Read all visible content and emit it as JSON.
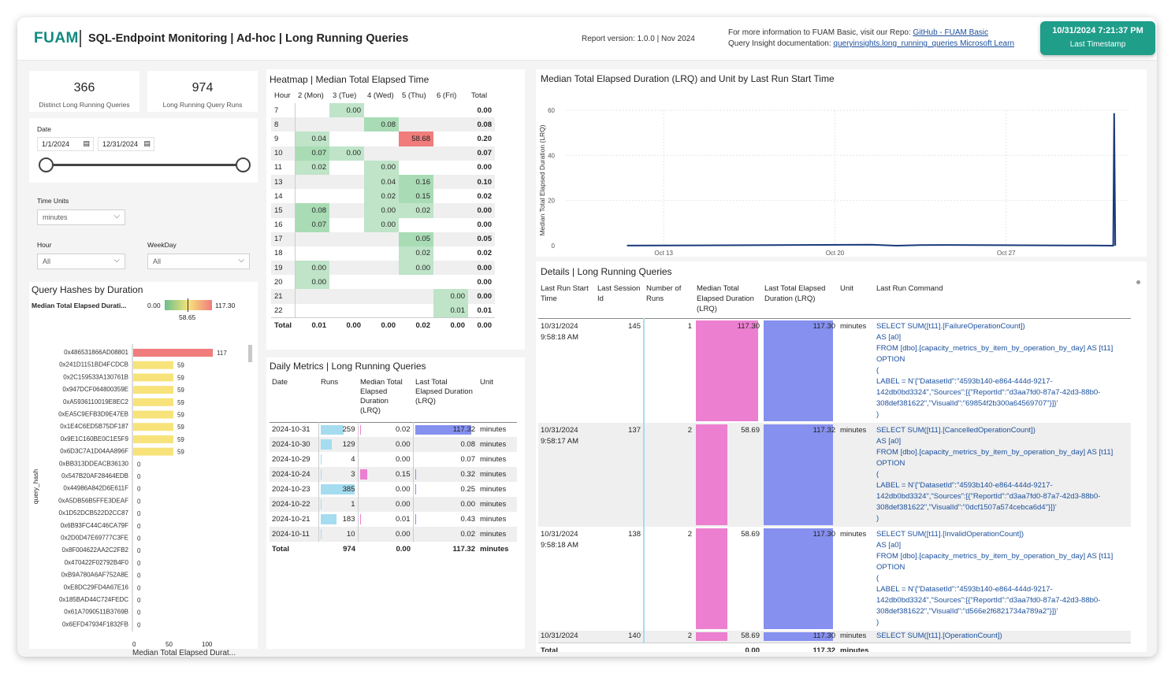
{
  "header": {
    "logo": "FUAM",
    "title": "SQL-Endpoint Monitoring | Ad-hoc | Long Running Queries",
    "version": "Report version: 1.0.0 | Nov 2024",
    "info_line1": "For more information to FUAM Basic, visit our Repo: ",
    "info_link1": "GitHub - FUAM Basic",
    "info_line2": "Query Insight documentation: ",
    "info_link2": "queryinsights.long_running_queries Microsoft Learn",
    "timestamp_value": "10/31/2024 7:21:37 PM",
    "timestamp_label": "Last Timestamp"
  },
  "kpis": [
    {
      "value": "366",
      "label": "Distinct Long Running Queries"
    },
    {
      "value": "974",
      "label": "Long Running Query Runs"
    }
  ],
  "filters": {
    "date_label": "Date",
    "date_from": "1/1/2024",
    "date_to": "12/31/2024",
    "time_units_label": "Time Units",
    "time_units_value": "minutes",
    "hour_label": "Hour",
    "hour_value": "All",
    "weekday_label": "WeekDay",
    "weekday_value": "All"
  },
  "hashes": {
    "title": "Query Hashes by Duration",
    "legend_label": "Median Total Elapsed Durati...",
    "legend_min": "0.00",
    "legend_mid": "58.65",
    "legend_max": "117.30",
    "yaxis_label": "query_hash",
    "xaxis_label": "Median Total Elapsed Durat...",
    "ticks": [
      "0",
      "50",
      "100"
    ]
  },
  "heatmap": {
    "title": "Heatmap | Median Total Elapsed Time",
    "columns": [
      "Hour",
      "2 (Mon)",
      "3 (Tue)",
      "4 (Wed)",
      "5 (Thu)",
      "6 (Fri)",
      "Total"
    ],
    "rows": [
      {
        "hour": "7",
        "cells": [
          "",
          "0.00",
          "",
          "",
          "",
          ""
        ],
        "total": "0.00"
      },
      {
        "hour": "8",
        "cells": [
          "",
          "",
          "0.08",
          "",
          "",
          ""
        ],
        "total": "0.08"
      },
      {
        "hour": "9",
        "cells": [
          "0.04",
          "",
          "",
          "58.68",
          "",
          ""
        ],
        "total": "0.20"
      },
      {
        "hour": "10",
        "cells": [
          "0.07",
          "0.00",
          "",
          "",
          "",
          ""
        ],
        "total": "0.07"
      },
      {
        "hour": "11",
        "cells": [
          "0.02",
          "",
          "0.00",
          "",
          "",
          ""
        ],
        "total": "0.00"
      },
      {
        "hour": "13",
        "cells": [
          "",
          "",
          "0.04",
          "0.16",
          "",
          ""
        ],
        "total": "0.10"
      },
      {
        "hour": "14",
        "cells": [
          "",
          "",
          "0.02",
          "0.15",
          "",
          ""
        ],
        "total": "0.02"
      },
      {
        "hour": "15",
        "cells": [
          "0.08",
          "",
          "0.00",
          "0.02",
          "",
          ""
        ],
        "total": "0.00"
      },
      {
        "hour": "16",
        "cells": [
          "0.07",
          "",
          "0.00",
          "",
          "",
          ""
        ],
        "total": "0.00"
      },
      {
        "hour": "17",
        "cells": [
          "",
          "",
          "",
          "0.05",
          "",
          ""
        ],
        "total": "0.05"
      },
      {
        "hour": "18",
        "cells": [
          "",
          "",
          "",
          "0.02",
          "",
          ""
        ],
        "total": "0.02"
      },
      {
        "hour": "19",
        "cells": [
          "0.00",
          "",
          "",
          "0.00",
          "",
          ""
        ],
        "total": "0.00"
      },
      {
        "hour": "20",
        "cells": [
          "0.00",
          "",
          "",
          "",
          "",
          ""
        ],
        "total": "0.00"
      },
      {
        "hour": "21",
        "cells": [
          "",
          "",
          "",
          "",
          "0.00",
          ""
        ],
        "total": "0.00"
      },
      {
        "hour": "22",
        "cells": [
          "",
          "",
          "",
          "",
          "0.01",
          ""
        ],
        "total": "0.01"
      }
    ],
    "total": {
      "label": "Total",
      "cells": [
        "0.01",
        "0.00",
        "0.00",
        "0.02",
        "0.00"
      ],
      "total": "0.00"
    }
  },
  "daily": {
    "title": "Daily Metrics | Long Running Queries",
    "columns": [
      "Date",
      "Runs",
      "Median Total Elapsed Duration (LRQ)",
      "Last Total Elapsed Duration (LRQ)",
      "Unit"
    ],
    "rows": [
      {
        "date": "2024-10-31",
        "runs": "259",
        "median": "0.02",
        "last": "117.32",
        "unit": "minutes"
      },
      {
        "date": "2024-10-30",
        "runs": "129",
        "median": "0.00",
        "last": "0.08",
        "unit": "minutes"
      },
      {
        "date": "2024-10-29",
        "runs": "4",
        "median": "0.00",
        "last": "0.07",
        "unit": "minutes"
      },
      {
        "date": "2024-10-24",
        "runs": "3",
        "median": "0.15",
        "last": "0.32",
        "unit": "minutes"
      },
      {
        "date": "2024-10-23",
        "runs": "385",
        "median": "0.00",
        "last": "0.25",
        "unit": "minutes"
      },
      {
        "date": "2024-10-22",
        "runs": "1",
        "median": "0.00",
        "last": "0.00",
        "unit": "minutes"
      },
      {
        "date": "2024-10-21",
        "runs": "183",
        "median": "0.01",
        "last": "0.43",
        "unit": "minutes"
      },
      {
        "date": "2024-10-11",
        "runs": "10",
        "median": "0.00",
        "last": "0.02",
        "unit": "minutes"
      }
    ],
    "total": {
      "label": "Total",
      "runs": "974",
      "median": "0.00",
      "last": "117.32",
      "unit": "minutes"
    }
  },
  "linechart": {
    "title": "Median Total Elapsed Duration (LRQ) and Unit by Last Run Start Time",
    "ylabel": "Median Total Elapsed Duration (LRQ)",
    "xlabel": "Last Run Start Time",
    "yticks": [
      "60",
      "40",
      "20",
      "0"
    ],
    "xticks": [
      "Oct 13",
      "Oct 20",
      "Oct 27"
    ]
  },
  "details": {
    "title": "Details | Long Running Queries",
    "columns": [
      "Last Run Start Time",
      "Last Session Id",
      "Number of Runs",
      "Median Total Elapsed Duration (LRQ)",
      "Last Total Elapsed Duration (LRQ)",
      "Unit",
      "Last Run Command"
    ],
    "rows": [
      {
        "time": "10/31/2024 9:58:18 AM",
        "session": "145",
        "runs": "1",
        "median": "117.30",
        "last": "117.30",
        "unit": "minutes",
        "cmd": [
          "SELECT SUM([t11].[FailureOperationCount])",
          "AS [a0]",
          "FROM [dbo].[capacity_metrics_by_item_by_operation_by_day] AS [t11]",
          "OPTION",
          "(",
          "LABEL = N'{\"DatasetId\":\"4593b140-e864-444d-9217-142db0bd3324\",\"Sources\":[{\"ReportId\":\"d3aa7fd0-87a7-42d3-88b0-308def381622\",\"VisualId\":\"69854f2b300a64569707\"}]}'",
          ")"
        ]
      },
      {
        "time": "10/31/2024 9:58:17 AM",
        "session": "137",
        "runs": "2",
        "median": "58.69",
        "last": "117.32",
        "unit": "minutes",
        "cmd": [
          "SELECT SUM([t11].[CancelledOperationCount])",
          "AS [a0]",
          "FROM [dbo].[capacity_metrics_by_item_by_operation_by_day] AS [t11]",
          "OPTION",
          "(",
          "LABEL = N'{\"DatasetId\":\"4593b140-e864-444d-9217-142db0bd3324\",\"Sources\":[{\"ReportId\":\"d3aa7fd0-87a7-42d3-88b0-308def381622\",\"VisualId\":\"0dcf1507a574cebca6d4\"}]}'",
          ")"
        ]
      },
      {
        "time": "10/31/2024 9:58:18 AM",
        "session": "138",
        "runs": "2",
        "median": "58.69",
        "last": "117.30",
        "unit": "minutes",
        "cmd": [
          "SELECT SUM([t11].[InvalidOperationCount])",
          "AS [a0]",
          "FROM [dbo].[capacity_metrics_by_item_by_operation_by_day] AS [t11]",
          "OPTION",
          "(",
          "LABEL = N'{\"DatasetId\":\"4593b140-e864-444d-9217-142db0bd3324\",\"Sources\":[{\"ReportId\":\"d3aa7fd0-87a7-42d3-88b0-308def381622\",\"VisualId\":\"d566e2f6821734a789a2\"}]}'",
          ")"
        ]
      },
      {
        "time": "10/31/2024",
        "session": "140",
        "runs": "2",
        "median": "58.69",
        "last": "117.30",
        "unit": "minutes",
        "cmd": [
          "SELECT SUM([t11].[OperationCount])"
        ]
      }
    ],
    "total": {
      "label": "Total",
      "median": "0.00",
      "last": "117.32",
      "unit": "minutes"
    }
  },
  "chart_data": [
    {
      "type": "bar",
      "title": "Query Hashes by Duration",
      "ylabel": "query_hash",
      "xlabel": "Median Total Elapsed Durat...",
      "xlim": [
        0,
        125
      ],
      "categories": [
        "0x486531866AD08801",
        "0x241D1151BD4FCDCB",
        "0x2C159533A130761B",
        "0x947DCF064800359E",
        "0xA5936110019E8EC2",
        "0xEA5C9EFB3D9E47EB",
        "0x1E4C6ED5B75DF187",
        "0x9E1C160BE0C1E5F9",
        "0x6D3C7A1D04AA896F",
        "0xBB313DDEACB36130",
        "0x547B20AF28464EDB",
        "0x44986A842D6E611F",
        "0xA5DB56B5FFE3DEAF",
        "0x1D52DCB522D2CC87",
        "0x6B93FC44C46CA79F",
        "0x2D0D47E69777C3FE",
        "0x8F004622AA2C2FB2",
        "0x470422F02792B4F0",
        "0xB9A780A6AF752A8E",
        "0xE8DC29FD4A67E16",
        "0x185BAD44C724FEDC",
        "0x61A7090511B3769B",
        "0x6EFD47934F1832FB"
      ],
      "values": [
        117,
        59,
        59,
        59,
        59,
        59,
        59,
        59,
        59,
        0,
        0,
        0,
        0,
        0,
        0,
        0,
        0,
        0,
        0,
        0,
        0,
        0,
        0
      ],
      "labels": [
        "117",
        "59",
        "59",
        "59",
        "59",
        "59",
        "59",
        "59",
        "59",
        "0",
        "0",
        "0",
        "0",
        "0",
        "0",
        "0",
        "0",
        "0",
        "0",
        "0",
        "0",
        "0",
        "0"
      ]
    },
    {
      "type": "line",
      "title": "Median Total Elapsed Duration (LRQ) and Unit by Last Run Start Time",
      "xlabel": "Last Run Start Time",
      "ylabel": "Median Total Elapsed Duration (LRQ)",
      "ylim": [
        0,
        60
      ],
      "x": [
        "2024-10-11",
        "2024-10-21",
        "2024-10-22",
        "2024-10-23",
        "2024-10-24",
        "2024-10-29",
        "2024-10-30",
        "2024-10-31 09:00",
        "2024-10-31 09:58",
        "2024-10-31 11:00"
      ],
      "values": [
        0.02,
        0.43,
        0.0,
        0.25,
        0.32,
        0.07,
        0.08,
        0.0,
        58.69,
        0.0
      ]
    }
  ]
}
